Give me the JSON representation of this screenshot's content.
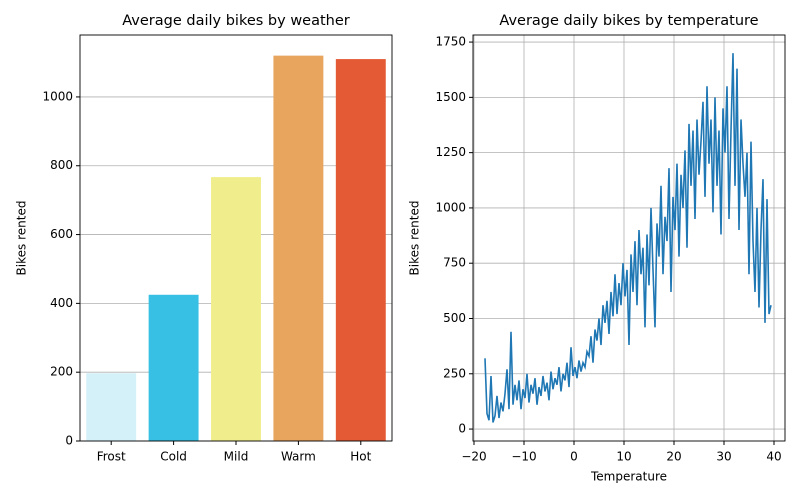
{
  "chart_data": [
    {
      "type": "bar",
      "title": "Average daily bikes by weather",
      "ylabel": "Bikes rented",
      "categories": [
        "Frost",
        "Cold",
        "Mild",
        "Warm",
        "Hot"
      ],
      "values": [
        197,
        425,
        767,
        1120,
        1110
      ],
      "colors": [
        "#d4f1f9",
        "#37c0e3",
        "#f0ee8c",
        "#e8a55e",
        "#e35a35"
      ],
      "ylim": [
        0,
        1180
      ],
      "yticks": [
        0,
        200,
        400,
        600,
        800,
        1000
      ],
      "grid": "y"
    },
    {
      "type": "line",
      "title": "Average daily bikes by temperature",
      "xlabel": "Temperature",
      "ylabel": "Bikes rented",
      "color": "#1f77b4",
      "x": [
        -17.8,
        -17.4,
        -17,
        -16.6,
        -16.2,
        -15.8,
        -15.4,
        -15,
        -14.6,
        -14.2,
        -13.8,
        -13.4,
        -13,
        -12.6,
        -12.2,
        -11.8,
        -11.4,
        -11,
        -10.6,
        -10.2,
        -9.8,
        -9.4,
        -9,
        -8.6,
        -8.2,
        -7.8,
        -7.4,
        -7,
        -6.6,
        -6.2,
        -5.8,
        -5.4,
        -5,
        -4.6,
        -4.2,
        -3.8,
        -3.4,
        -3,
        -2.6,
        -2.2,
        -1.8,
        -1.4,
        -1,
        -0.6,
        -0.2,
        0.2,
        0.6,
        1,
        1.4,
        1.8,
        2.2,
        2.6,
        3,
        3.4,
        3.8,
        4.2,
        4.6,
        5,
        5.4,
        5.8,
        6.2,
        6.6,
        7,
        7.4,
        7.8,
        8.2,
        8.6,
        9,
        9.4,
        9.8,
        10.2,
        10.6,
        11,
        11.4,
        11.8,
        12.2,
        12.6,
        13,
        13.4,
        13.8,
        14.2,
        14.6,
        15,
        15.4,
        15.8,
        16.2,
        16.6,
        17,
        17.4,
        17.8,
        18.2,
        18.6,
        19,
        19.4,
        19.8,
        20.2,
        20.6,
        21,
        21.4,
        21.8,
        22.2,
        22.6,
        23,
        23.4,
        23.8,
        24.2,
        24.6,
        25,
        25.4,
        25.8,
        26.2,
        26.6,
        27,
        27.4,
        27.8,
        28.2,
        28.6,
        29,
        29.4,
        29.8,
        30.2,
        30.6,
        31,
        31.4,
        31.8,
        32.2,
        32.6,
        33,
        33.4,
        33.8,
        34.2,
        34.6,
        35,
        35.4,
        35.8,
        36.2,
        36.6,
        37,
        37.4,
        37.8,
        38.2,
        38.6,
        39,
        39.4
      ],
      "values": [
        320,
        70,
        40,
        240,
        30,
        60,
        150,
        50,
        120,
        80,
        160,
        270,
        90,
        440,
        110,
        200,
        130,
        220,
        90,
        180,
        140,
        250,
        120,
        200,
        160,
        230,
        110,
        190,
        150,
        240,
        170,
        210,
        130,
        260,
        180,
        230,
        200,
        280,
        170,
        250,
        220,
        300,
        190,
        370,
        240,
        280,
        230,
        310,
        260,
        300,
        280,
        350,
        330,
        420,
        300,
        450,
        400,
        500,
        380,
        560,
        480,
        580,
        430,
        620,
        510,
        700,
        520,
        660,
        560,
        750,
        600,
        720,
        380,
        790,
        620,
        850,
        560,
        900,
        700,
        820,
        460,
        880,
        650,
        1000,
        720,
        460,
        930,
        780,
        1100,
        700,
        960,
        850,
        1180,
        620,
        1050,
        900,
        1200,
        780,
        1150,
        1000,
        1260,
        820,
        1380,
        1100,
        1350,
        950,
        1400,
        1150,
        1300,
        1480,
        1050,
        1550,
        1200,
        1400,
        980,
        1500,
        1100,
        1350,
        880,
        1450,
        1250,
        1550,
        950,
        1350,
        1700,
        1100,
        1630,
        900,
        1400,
        1200,
        1050,
        1250,
        700,
        1300,
        850,
        620,
        1000,
        550,
        900,
        1130,
        480,
        1040,
        520,
        560
      ],
      "xlim": [
        -20.2,
        42.2
      ],
      "xticks": [
        {
          "value": -20,
          "label": "−20"
        },
        {
          "value": -10,
          "label": "−10"
        },
        0,
        10,
        20,
        30,
        40
      ],
      "ylim": [
        -54,
        1782
      ],
      "yticks": [
        0,
        250,
        500,
        750,
        1000,
        1250,
        1500,
        1750
      ],
      "grid": "both"
    }
  ]
}
